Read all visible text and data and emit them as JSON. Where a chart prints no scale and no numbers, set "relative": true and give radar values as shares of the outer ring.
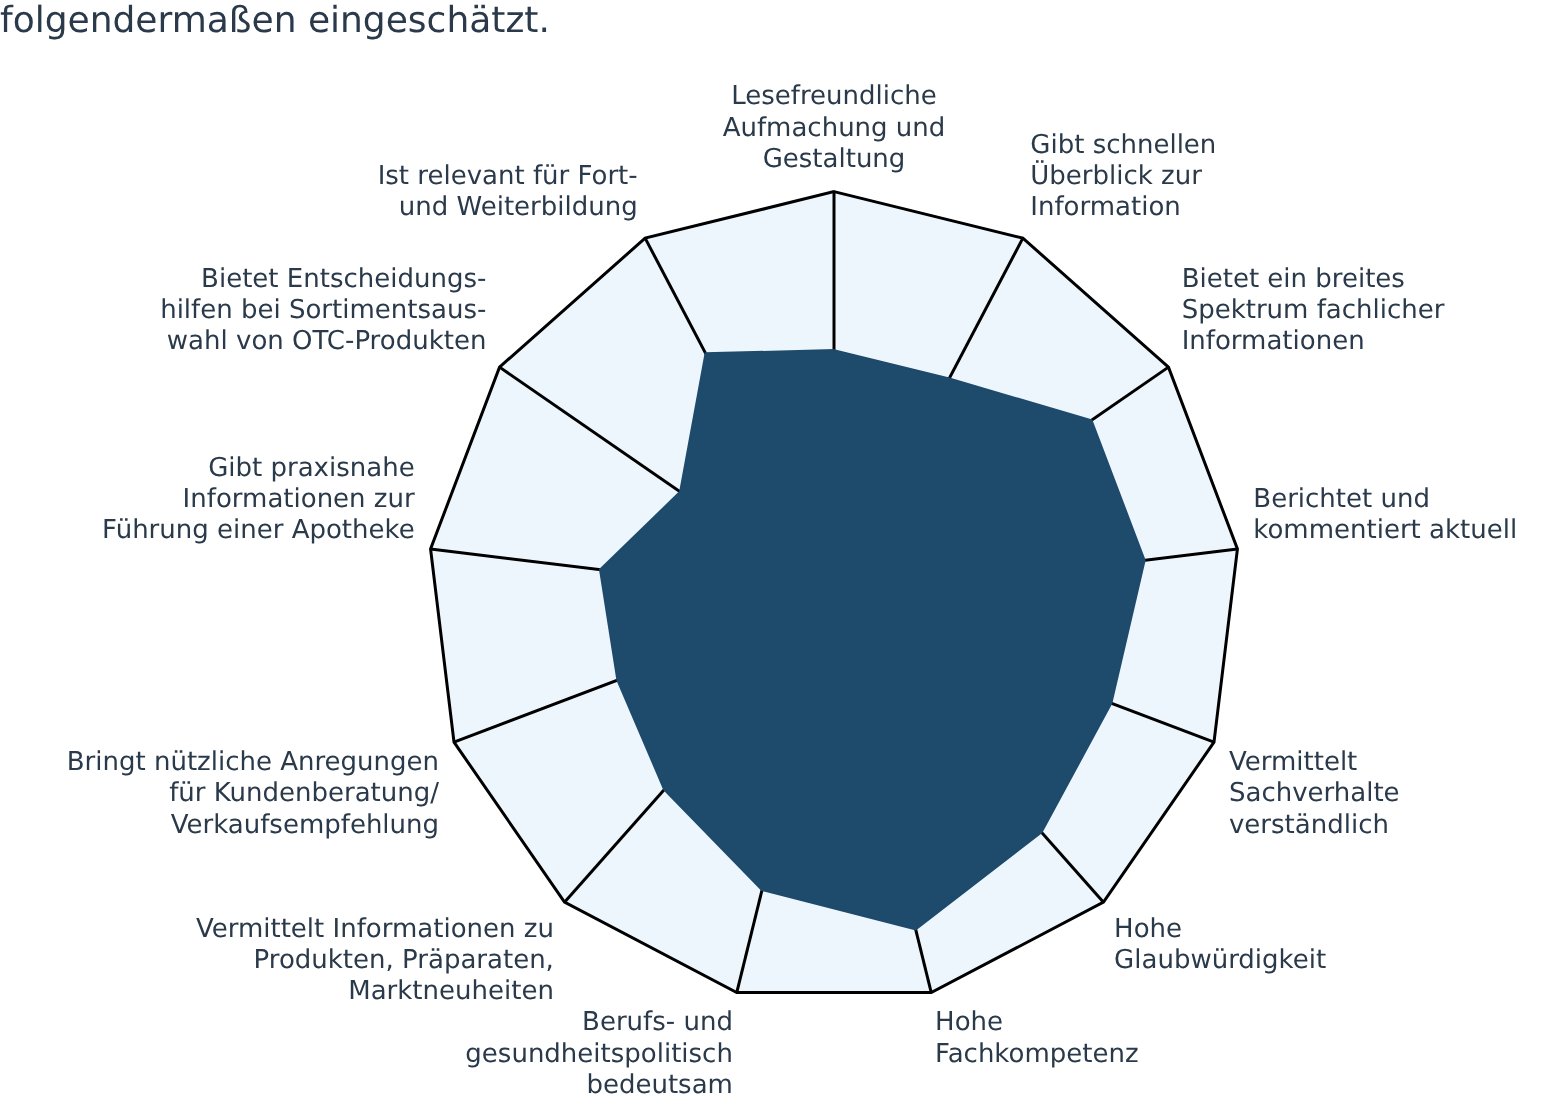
{
  "chart_data": {
    "type": "radar",
    "title": "folgendermaßen eingeschätzt.",
    "relative": true,
    "categories": [
      "Lesefreundliche\nAufmachung und\nGestaltung",
      "Gibt schnellen\nÜberblick zur\nInformation",
      "Bietet ein breites\nSpektrum fachlicher\nInformationen",
      "Berichtet und\nkommentiert aktuell",
      "Vermittelt\nSachverhalte\nverständlich",
      "Hohe\nGlaubwürdigkeit",
      "Hohe\nFachkompetenz",
      "Berufs- und\ngesundheitspolitisch\nbedeutsam",
      "Vermittelt Informationen zu\nProdukten, Präparaten,\nMarktneuheiten",
      "Bringt nützliche Anregungen\nfür Kundenberatung/\nVerkaufsempfehlung",
      "Gibt praxisnahe\nInformationen zur\nFührung einer Apotheke",
      "Bietet Entscheidungs-\nhilfen bei Sortimentsaus-\nwahl von OTC-Produkten",
      "Ist relevant für Fort-\nund Weiterbildung"
    ],
    "series": [
      {
        "color": "#1e4a6b",
        "values": [
          0.61,
          0.61,
          0.77,
          0.77,
          0.73,
          0.77,
          0.84,
          0.74,
          0.63,
          0.57,
          0.58,
          0.46,
          0.68
        ]
      }
    ],
    "legend": false
  }
}
